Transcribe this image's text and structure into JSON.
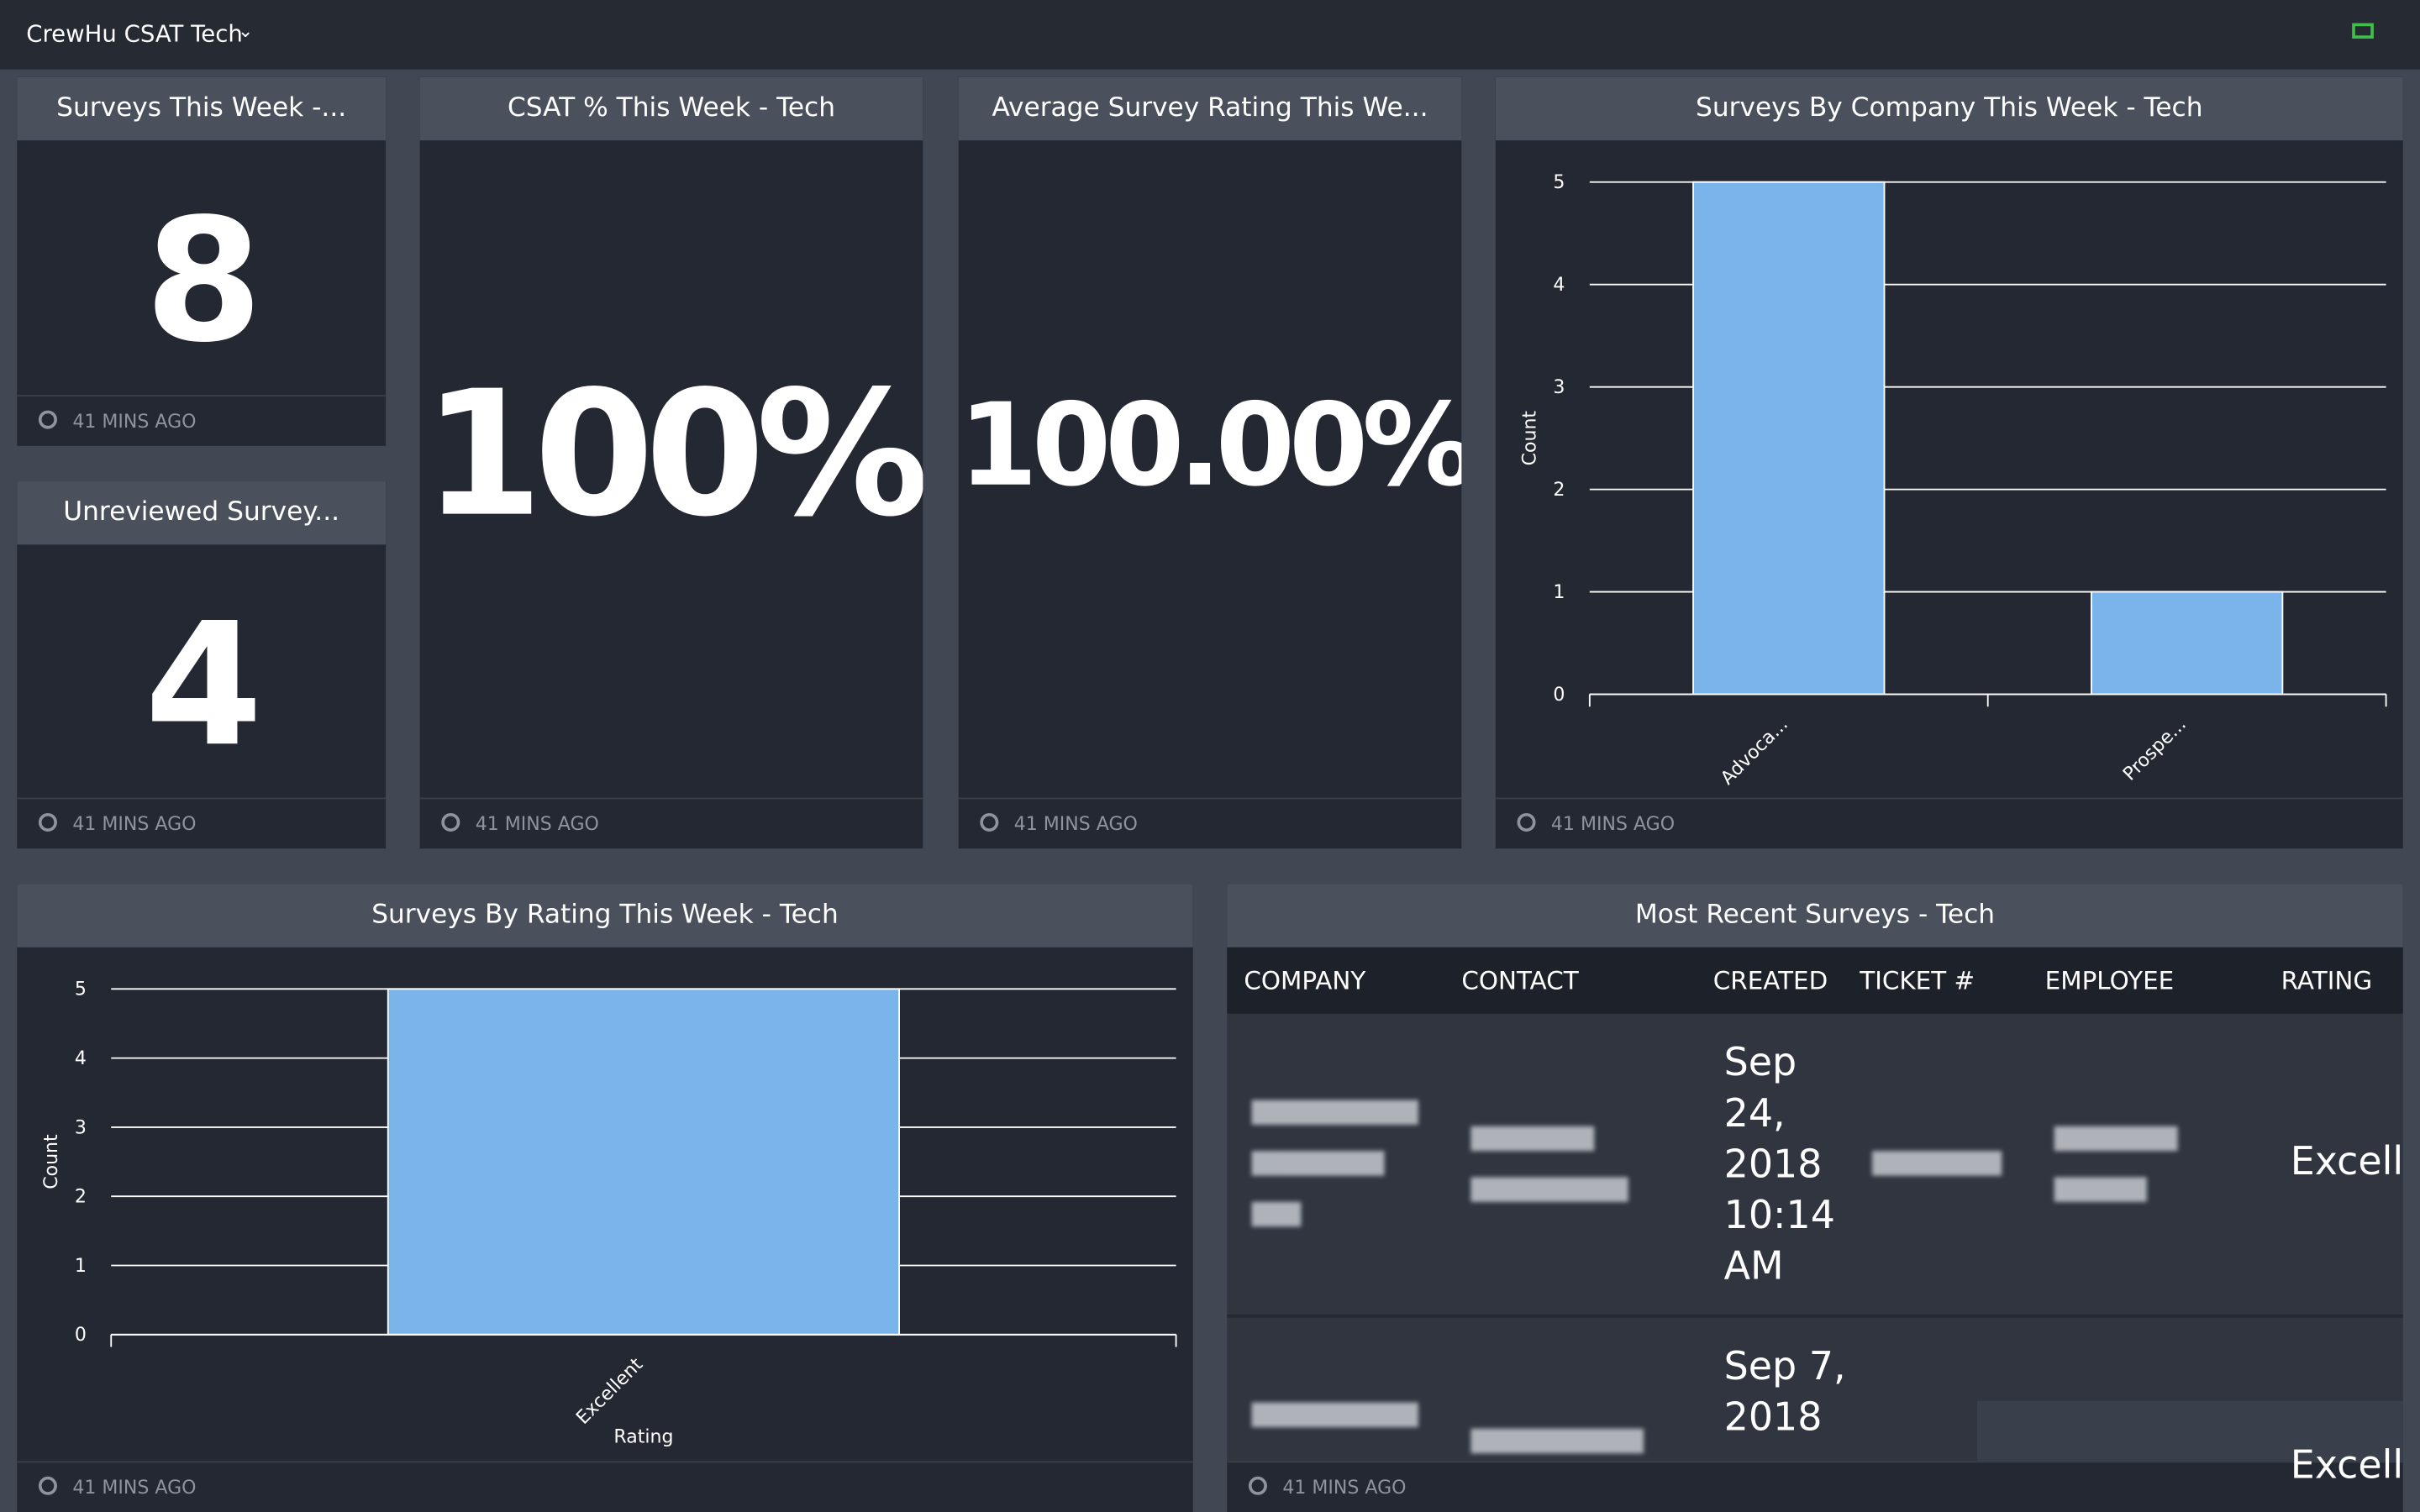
{
  "header": {
    "title": "CrewHu CSAT Tech"
  },
  "widgets": [
    {
      "title": "Surveys This Week -...",
      "value": 8,
      "updated": "41 MINS AGO"
    },
    {
      "title": "Unreviewed Survey...",
      "value": 4,
      "updated": "41 MINS AGO"
    },
    {
      "title": "CSAT % This Week - Tech",
      "value": "100%",
      "updated": "41 MINS AGO"
    },
    {
      "title": "Average Survey Rating This We...",
      "value": "100.00%",
      "updated": "41 MINS AGO"
    },
    {
      "title": "Surveys By Company This Week - Tech",
      "updated": "41 MINS AGO",
      "chart": {
        "type": "bar",
        "y_label": "Count",
        "categories": [
          "Advoca...",
          "Prospe..."
        ],
        "values": [
          5,
          1
        ],
        "ylim": [
          0,
          5
        ],
        "yticks": [
          0,
          1,
          2,
          3,
          4,
          5
        ],
        "color": "#7ab4ea",
        "grid": true
      }
    },
    {
      "title": "Surveys By Rating This Week - Tech",
      "updated": "41 MINS AGO",
      "chart": {
        "type": "bar",
        "y_label": "Count",
        "x_label": "Rating",
        "categories": [
          "Excellent"
        ],
        "values": [
          5
        ],
        "ylim": [
          0,
          5
        ],
        "yticks": [
          0,
          1,
          2,
          3,
          4,
          5
        ],
        "color": "#7ab4ea",
        "grid": true
      }
    },
    {
      "title": "Most Recent Surveys - Tech",
      "updated": "41 MINS AGO",
      "table": {
        "columns": [
          "COMPANY",
          "CONTACT",
          "CREATED",
          "TICKET #",
          "EMPLOYEE",
          "RATING"
        ],
        "rows": [
          {
            "created": "Sep 24, 2018 10:14 AM",
            "rating": "Excellent"
          },
          {
            "created": "Sep 7, 2018",
            "rating": "Excellent"
          }
        ]
      }
    }
  ]
}
